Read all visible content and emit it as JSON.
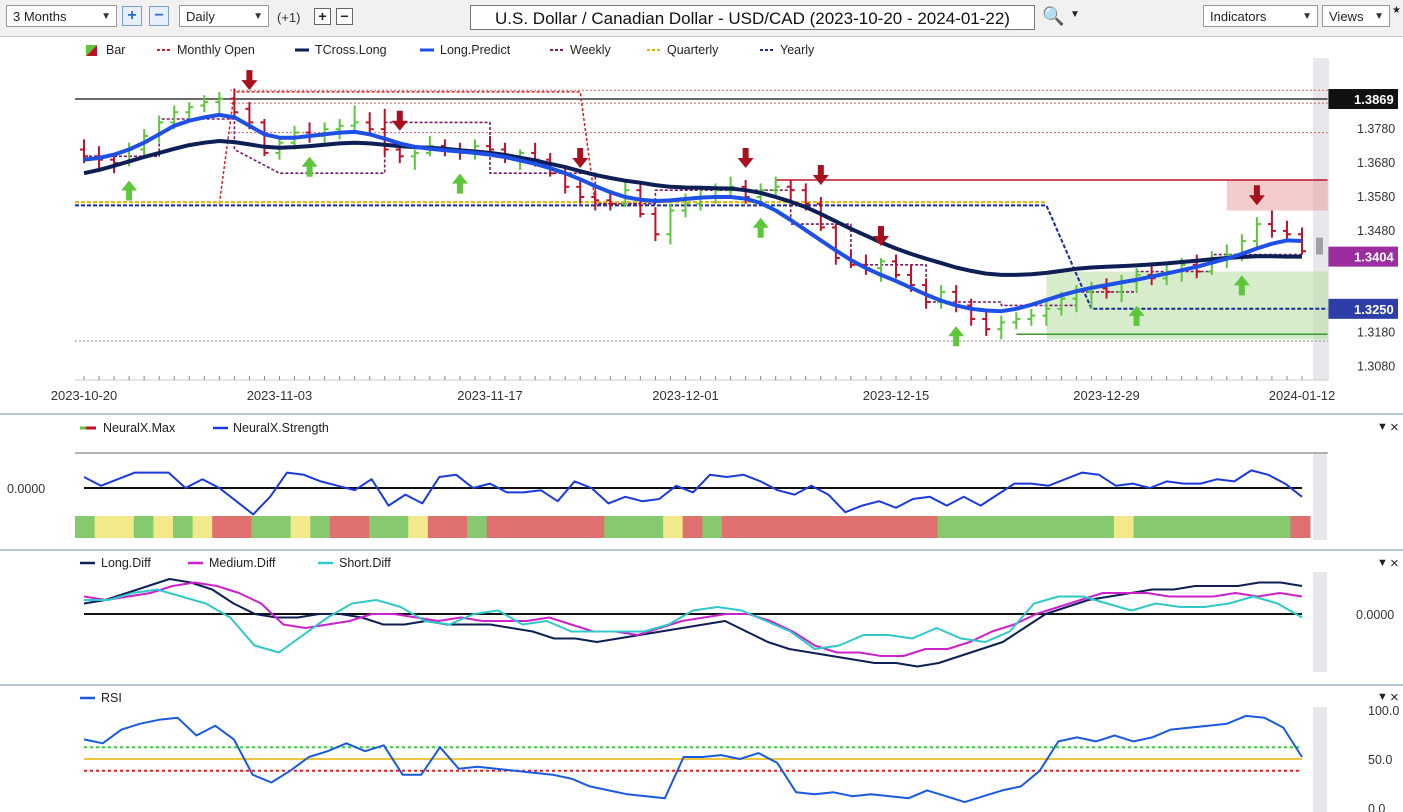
{
  "toolbar": {
    "period": "3 Months",
    "interval": "Daily",
    "offset": "(+1)",
    "title": "U.S. Dollar / Canadian Dollar - USD/CAD (2023-10-20 - 2024-01-22)",
    "indicators": "Indicators",
    "views": "Views"
  },
  "colors": {
    "up_bar": "#5ec63a",
    "down_bar": "#c0102a",
    "tcross_long": "#0d1f55",
    "long_predict": "#1e50e6",
    "monthly_open": "#d42020",
    "weekly": "#7a1a6a",
    "quarterly": "#e8b400",
    "yearly": "#1a2aa0",
    "neural_strength": "#1a3ae0",
    "long_diff": "#0d1f55",
    "medium_diff": "#cc22cc",
    "short_diff": "#30c8c8",
    "rsi": "#1a5ae0"
  },
  "chart_data": [
    {
      "type": "ohlc",
      "panel": "price",
      "legend": [
        "Bar",
        "Monthly Open",
        "TCross.Long",
        "Long.Predict",
        "Weekly",
        "Quarterly",
        "Yearly"
      ],
      "x_ticks": [
        "2023-10-20",
        "2023-11-03",
        "2023-11-17",
        "2023-12-01",
        "2023-12-15",
        "2023-12-29",
        "2024-01-12"
      ],
      "y_ticks": [
        "1.3780",
        "1.3680",
        "1.3580",
        "1.3480",
        "1.3180",
        "1.3080"
      ],
      "price_tags": [
        {
          "label": "1.3869",
          "bg": "#111111",
          "value": 1.3869
        },
        {
          "label": "1.3404",
          "bg": "#9b2d9e",
          "value": 1.3404
        },
        {
          "label": "1.3250",
          "bg": "#2d3ea8",
          "value": 1.325
        }
      ],
      "ylim": [
        1.304,
        1.399
      ],
      "bars": [
        [
          1.372,
          1.375,
          1.368,
          1.37
        ],
        [
          1.37,
          1.373,
          1.366,
          1.369
        ],
        [
          1.369,
          1.371,
          1.365,
          1.368
        ],
        [
          1.368,
          1.374,
          1.367,
          1.372
        ],
        [
          1.372,
          1.378,
          1.37,
          1.376
        ],
        [
          1.376,
          1.382,
          1.374,
          1.38
        ],
        [
          1.38,
          1.385,
          1.378,
          1.383
        ],
        [
          1.383,
          1.386,
          1.38,
          1.3845
        ],
        [
          1.385,
          1.388,
          1.383,
          1.386
        ],
        [
          1.386,
          1.389,
          1.382,
          1.387
        ],
        [
          1.387,
          1.39,
          1.382,
          1.383
        ],
        [
          1.384,
          1.386,
          1.378,
          1.38
        ],
        [
          1.38,
          1.381,
          1.37,
          1.371
        ],
        [
          1.371,
          1.376,
          1.369,
          1.374
        ],
        [
          1.374,
          1.379,
          1.372,
          1.377
        ],
        [
          1.377,
          1.38,
          1.374,
          1.376
        ],
        [
          1.376,
          1.38,
          1.374,
          1.378
        ],
        [
          1.378,
          1.381,
          1.375,
          1.379
        ],
        [
          1.379,
          1.385,
          1.377,
          1.38
        ],
        [
          1.38,
          1.383,
          1.376,
          1.378
        ],
        [
          1.378,
          1.384,
          1.37,
          1.372
        ],
        [
          1.372,
          1.374,
          1.368,
          1.37
        ],
        [
          1.37,
          1.372,
          1.366,
          1.371
        ],
        [
          1.371,
          1.376,
          1.37,
          1.373
        ],
        [
          1.373,
          1.375,
          1.37,
          1.372
        ],
        [
          1.372,
          1.374,
          1.369,
          1.371
        ],
        [
          1.371,
          1.375,
          1.369,
          1.373
        ],
        [
          1.373,
          1.376,
          1.37,
          1.372
        ],
        [
          1.372,
          1.374,
          1.368,
          1.37
        ],
        [
          1.37,
          1.372,
          1.366,
          1.371
        ],
        [
          1.371,
          1.374,
          1.367,
          1.369
        ],
        [
          1.369,
          1.371,
          1.364,
          1.365
        ],
        [
          1.365,
          1.367,
          1.359,
          1.361
        ],
        [
          1.361,
          1.363,
          1.356,
          1.358
        ],
        [
          1.358,
          1.36,
          1.354,
          1.357
        ],
        [
          1.357,
          1.36,
          1.354,
          1.356
        ],
        [
          1.356,
          1.363,
          1.355,
          1.36
        ],
        [
          1.36,
          1.362,
          1.352,
          1.353
        ],
        [
          1.353,
          1.355,
          1.345,
          1.347
        ],
        [
          1.347,
          1.356,
          1.344,
          1.354
        ],
        [
          1.354,
          1.359,
          1.352,
          1.356
        ],
        [
          1.356,
          1.36,
          1.354,
          1.358
        ],
        [
          1.358,
          1.362,
          1.356,
          1.36
        ],
        [
          1.36,
          1.364,
          1.358,
          1.361
        ],
        [
          1.361,
          1.363,
          1.356,
          1.358
        ],
        [
          1.358,
          1.362,
          1.356,
          1.36
        ],
        [
          1.36,
          1.364,
          1.358,
          1.361
        ],
        [
          1.361,
          1.363,
          1.357,
          1.36
        ],
        [
          1.36,
          1.362,
          1.354,
          1.356
        ],
        [
          1.356,
          1.358,
          1.348,
          1.349
        ],
        [
          1.349,
          1.35,
          1.338,
          1.34
        ],
        [
          1.34,
          1.342,
          1.337,
          1.338
        ],
        [
          1.338,
          1.341,
          1.335,
          1.337
        ],
        [
          1.337,
          1.34,
          1.333,
          1.339
        ],
        [
          1.339,
          1.341,
          1.334,
          1.335
        ],
        [
          1.335,
          1.338,
          1.33,
          1.332
        ],
        [
          1.332,
          1.334,
          1.325,
          1.327
        ],
        [
          1.327,
          1.332,
          1.325,
          1.33
        ],
        [
          1.33,
          1.332,
          1.324,
          1.326
        ],
        [
          1.326,
          1.328,
          1.32,
          1.322
        ],
        [
          1.322,
          1.324,
          1.317,
          1.319
        ],
        [
          1.319,
          1.323,
          1.316,
          1.321
        ],
        [
          1.321,
          1.324,
          1.319,
          1.322
        ],
        [
          1.322,
          1.325,
          1.32,
          1.323
        ],
        [
          1.323,
          1.327,
          1.32,
          1.325
        ],
        [
          1.325,
          1.33,
          1.323,
          1.328
        ],
        [
          1.328,
          1.332,
          1.324,
          1.33
        ],
        [
          1.33,
          1.333,
          1.325,
          1.331
        ],
        [
          1.331,
          1.334,
          1.328,
          1.33
        ],
        [
          1.33,
          1.335,
          1.327,
          1.333
        ],
        [
          1.333,
          1.337,
          1.33,
          1.335
        ],
        [
          1.335,
          1.338,
          1.332,
          1.334
        ],
        [
          1.334,
          1.339,
          1.332,
          1.336
        ],
        [
          1.336,
          1.34,
          1.333,
          1.338
        ],
        [
          1.338,
          1.341,
          1.334,
          1.336
        ],
        [
          1.336,
          1.342,
          1.335,
          1.34
        ],
        [
          1.34,
          1.344,
          1.337,
          1.341
        ],
        [
          1.341,
          1.347,
          1.339,
          1.345
        ],
        [
          1.345,
          1.352,
          1.343,
          1.35
        ],
        [
          1.35,
          1.354,
          1.346,
          1.348
        ],
        [
          1.348,
          1.351,
          1.345,
          1.347
        ],
        [
          1.347,
          1.349,
          1.341,
          1.342
        ]
      ],
      "tcross_long": [
        1.365,
        1.366,
        1.3672,
        1.3685,
        1.3698,
        1.371,
        1.3722,
        1.3733,
        1.374,
        1.3745,
        1.3742,
        1.3735,
        1.3728,
        1.3725,
        1.3727,
        1.373,
        1.3734,
        1.3738,
        1.374,
        1.3738,
        1.3734,
        1.373,
        1.3727,
        1.3725,
        1.3722,
        1.3718,
        1.3714,
        1.371,
        1.3704,
        1.3696,
        1.3688,
        1.3678,
        1.3668,
        1.3656,
        1.3645,
        1.3636,
        1.3628,
        1.3622,
        1.3615,
        1.361,
        1.3608,
        1.3607,
        1.3606,
        1.3605,
        1.36,
        1.3592,
        1.358,
        1.3566,
        1.355,
        1.353,
        1.3508,
        1.3486,
        1.3466,
        1.3446,
        1.3428,
        1.3412,
        1.3398,
        1.3385,
        1.3372,
        1.3362,
        1.3354,
        1.335,
        1.335,
        1.3352,
        1.3356,
        1.3362,
        1.3368,
        1.3372,
        1.3374,
        1.3376,
        1.3378,
        1.3381,
        1.3384,
        1.3388,
        1.3392,
        1.3396,
        1.34,
        1.3403,
        1.3405,
        1.3405,
        1.3404,
        1.3404
      ],
      "long_predict": [
        1.369,
        1.3695,
        1.3705,
        1.372,
        1.374,
        1.3765,
        1.379,
        1.3805,
        1.3815,
        1.3822,
        1.3815,
        1.379,
        1.3765,
        1.3755,
        1.3755,
        1.376,
        1.3765,
        1.377,
        1.3772,
        1.3765,
        1.3752,
        1.3738,
        1.3728,
        1.3722,
        1.3718,
        1.3714,
        1.371,
        1.3705,
        1.3698,
        1.3688,
        1.3678,
        1.3665,
        1.365,
        1.3632,
        1.3612,
        1.3594,
        1.358,
        1.3572,
        1.3568,
        1.357,
        1.3574,
        1.3578,
        1.358,
        1.358,
        1.3575,
        1.3562,
        1.354,
        1.3512,
        1.3482,
        1.3452,
        1.3422,
        1.3394,
        1.337,
        1.335,
        1.3332,
        1.3312,
        1.3292,
        1.3274,
        1.326,
        1.325,
        1.3245,
        1.3243,
        1.325,
        1.3262,
        1.3276,
        1.329,
        1.3302,
        1.3312,
        1.332,
        1.3328,
        1.3336,
        1.3345,
        1.3354,
        1.3364,
        1.3374,
        1.3386,
        1.3398,
        1.3412,
        1.3428,
        1.3442,
        1.3452,
        1.345
      ],
      "signals_up": [
        3,
        15,
        25,
        45,
        58,
        70,
        77
      ],
      "signals_down": [
        11,
        21,
        33,
        44,
        49,
        53,
        78
      ]
    },
    {
      "type": "line",
      "panel": "neuralx",
      "legend": [
        "NeuralX.Max",
        "NeuralX.Strength"
      ],
      "y_ticks": [
        "0.0000"
      ],
      "series": [
        {
          "name": "NeuralX.Strength",
          "values": [
            0.5,
            0.1,
            0.4,
            0.7,
            0.7,
            0.7,
            0.0,
            0.4,
            0.0,
            -0.6,
            -1.2,
            -0.4,
            0.7,
            0.6,
            0.3,
            0.1,
            -0.1,
            0.4,
            -0.8,
            -0.3,
            -0.7,
            0.5,
            0.6,
            0.0,
            0.2,
            -0.2,
            -0.2,
            -0.1,
            -0.6,
            0.3,
            0.0,
            -0.7,
            -0.4,
            -0.6,
            -0.5,
            0.1,
            -0.2,
            0.6,
            0.5,
            0.6,
            0.3,
            -0.1,
            -0.3,
            0.1,
            -0.3,
            -1.1,
            -0.8,
            -0.6,
            -0.9,
            -0.5,
            -0.4,
            -0.8,
            -0.4,
            -0.8,
            -0.3,
            0.2,
            0.2,
            0.1,
            0.4,
            0.7,
            0.6,
            0.1,
            0.2,
            0.0,
            0.3,
            0.2,
            0.2,
            0.4,
            0.3,
            0.8,
            0.6,
            0.2,
            -0.4
          ]
        }
      ],
      "max_strip": [
        "green",
        "yellow",
        "yellow",
        "green",
        "yellow",
        "green",
        "yellow",
        "red",
        "red",
        "green",
        "green",
        "yellow",
        "green",
        "red",
        "red",
        "green",
        "green",
        "yellow",
        "red",
        "red",
        "green",
        "red",
        "red",
        "red",
        "red",
        "red",
        "red",
        "green",
        "green",
        "green",
        "yellow",
        "red",
        "green",
        "red",
        "red",
        "red",
        "red",
        "red",
        "red",
        "red",
        "red",
        "red",
        "red",
        "red",
        "green",
        "green",
        "green",
        "green",
        "green",
        "green",
        "green",
        "green",
        "green",
        "yellow",
        "green",
        "green",
        "green",
        "green",
        "green",
        "green",
        "green",
        "green",
        "red"
      ]
    },
    {
      "type": "line",
      "panel": "diff",
      "legend": [
        "Long.Diff",
        "Medium.Diff",
        "Short.Diff"
      ],
      "y_ticks": [
        "0.0000"
      ],
      "series": [
        {
          "name": "Long.Diff",
          "values": [
            0.3,
            0.4,
            0.6,
            0.8,
            1.0,
            0.9,
            0.7,
            0.3,
            0.0,
            -0.1,
            -0.1,
            0.0,
            0.0,
            -0.1,
            -0.3,
            -0.3,
            -0.2,
            -0.3,
            -0.3,
            -0.3,
            -0.4,
            -0.5,
            -0.7,
            -0.7,
            -0.8,
            -0.7,
            -0.6,
            -0.5,
            -0.4,
            -0.3,
            -0.2,
            -0.5,
            -0.8,
            -1.0,
            -1.1,
            -1.2,
            -1.3,
            -1.4,
            -1.4,
            -1.5,
            -1.4,
            -1.2,
            -1.0,
            -0.8,
            -0.4,
            0.0,
            0.2,
            0.4,
            0.5,
            0.6,
            0.7,
            0.7,
            0.8,
            0.8,
            0.8,
            0.9,
            0.9,
            0.8
          ]
        },
        {
          "name": "Medium.Diff",
          "values": [
            0.5,
            0.4,
            0.5,
            0.6,
            0.8,
            0.9,
            0.8,
            0.6,
            0.3,
            -0.3,
            -0.4,
            -0.3,
            -0.2,
            0.0,
            0.0,
            -0.1,
            -0.2,
            -0.1,
            -0.2,
            -0.2,
            -0.2,
            -0.1,
            -0.3,
            -0.5,
            -0.5,
            -0.6,
            -0.4,
            -0.2,
            -0.1,
            0.0,
            0.0,
            -0.2,
            -0.5,
            -0.9,
            -1.1,
            -1.1,
            -1.2,
            -1.2,
            -1.0,
            -1.0,
            -0.8,
            -0.5,
            -0.3,
            0.0,
            0.2,
            0.4,
            0.6,
            0.6,
            0.6,
            0.5,
            0.5,
            0.5,
            0.6,
            0.5,
            0.6,
            0.5
          ]
        },
        {
          "name": "Short.Diff",
          "values": [
            0.4,
            0.4,
            0.6,
            0.7,
            0.5,
            0.3,
            -0.1,
            -0.9,
            -1.1,
            -0.6,
            -0.1,
            0.3,
            0.4,
            0.2,
            -0.2,
            -0.3,
            0.0,
            0.1,
            -0.3,
            -0.2,
            -0.5,
            -0.5,
            -0.5,
            -0.5,
            -0.3,
            0.1,
            0.2,
            0.1,
            -0.2,
            -0.5,
            -1.0,
            -0.9,
            -0.6,
            -0.6,
            -0.7,
            -0.4,
            -0.7,
            -0.8,
            -0.5,
            0.3,
            0.5,
            0.5,
            0.3,
            0.1,
            0.3,
            0.2,
            0.2,
            0.3,
            0.5,
            0.3,
            -0.1
          ]
        }
      ]
    },
    {
      "type": "line",
      "panel": "rsi",
      "legend": [
        "RSI"
      ],
      "y_ticks": [
        "100.0",
        "50.0",
        "0.0"
      ],
      "ylim": [
        0,
        100
      ],
      "overbought": 62,
      "neutral": 50,
      "oversold": 38,
      "series": [
        {
          "name": "RSI",
          "values": [
            70,
            66,
            80,
            86,
            90,
            92,
            74,
            84,
            70,
            34,
            26,
            38,
            52,
            58,
            66,
            58,
            64,
            34,
            34,
            62,
            40,
            42,
            40,
            38,
            36,
            34,
            30,
            22,
            18,
            14,
            12,
            10,
            52,
            52,
            54,
            50,
            56,
            46,
            16,
            14,
            16,
            12,
            14,
            12,
            10,
            18,
            12,
            6,
            12,
            18,
            22,
            38,
            68,
            72,
            68,
            74,
            68,
            72,
            80,
            82,
            84,
            86,
            94,
            92,
            82,
            52
          ]
        }
      ]
    }
  ],
  "panels": {
    "neuralx": {
      "close": "×",
      "menu": "▼"
    },
    "diff": {
      "close": "×",
      "menu": "▼"
    },
    "rsi": {
      "close": "×",
      "menu": "▼"
    }
  }
}
